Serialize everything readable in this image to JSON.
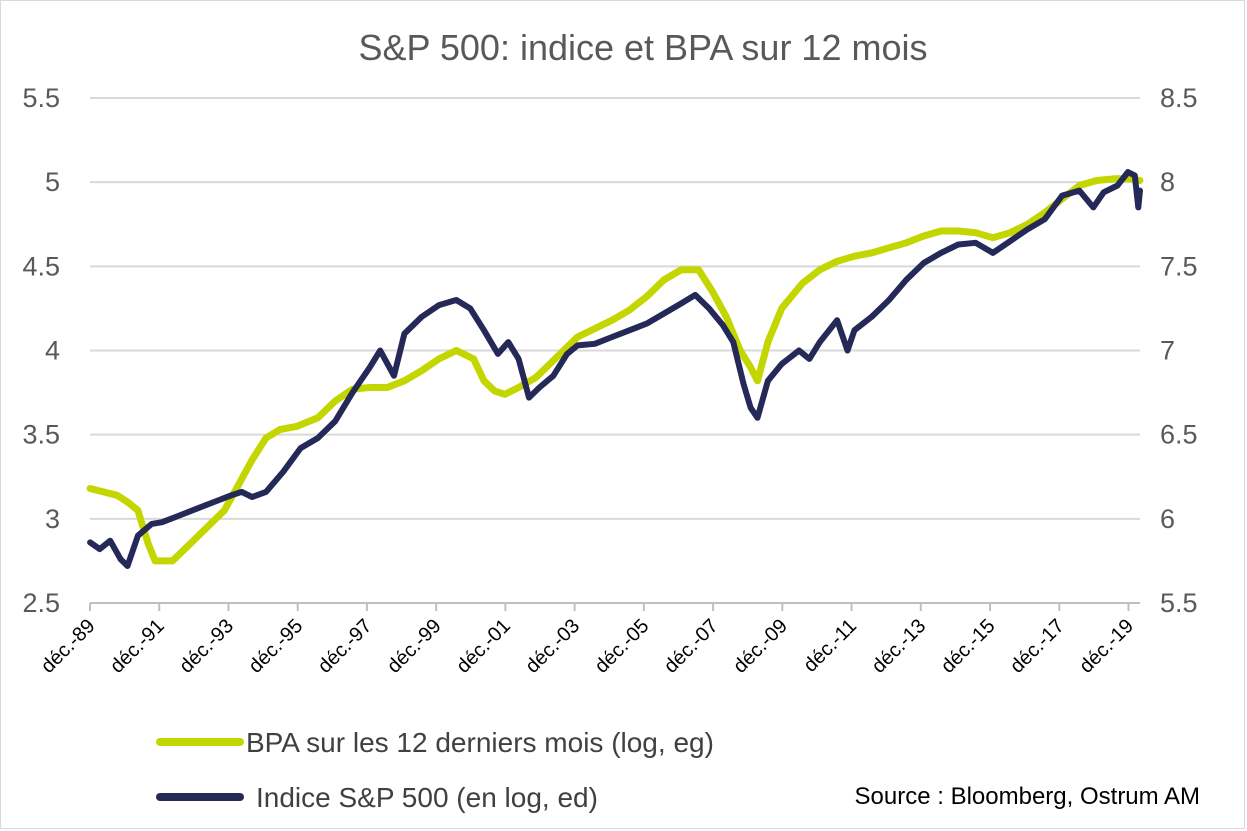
{
  "chart_data": {
    "type": "line",
    "title": "S&P 500: indice et BPA sur 12 mois",
    "source": "Source : Bloomberg, Ostrum AM",
    "x_range": [
      1989.917,
      2020.25
    ],
    "x_ticks": [
      "déc.-89",
      "déc.-91",
      "déc.-93",
      "déc.-95",
      "déc.-97",
      "déc.-99",
      "déc.-01",
      "déc.-03",
      "déc.-05",
      "déc.-07",
      "déc.-09",
      "déc.-11",
      "déc.-13",
      "déc.-15",
      "déc.-17",
      "déc.-19"
    ],
    "y_left": {
      "ticks": [
        "2.5",
        "3",
        "3.5",
        "4",
        "4.5",
        "5",
        "5.5"
      ],
      "range": [
        2.5,
        5.5
      ]
    },
    "y_right": {
      "ticks": [
        "5.5",
        "6",
        "6.5",
        "7",
        "7.5",
        "8",
        "8.5"
      ],
      "range": [
        5.5,
        8.5
      ]
    },
    "grid": true,
    "legend_position": "bottom-left",
    "series": [
      {
        "name": "BPA sur les 12 derniers mois (log, eg)",
        "axis": "left",
        "color": "#c3d600",
        "points": [
          [
            1989.92,
            3.18
          ],
          [
            1990.3,
            3.16
          ],
          [
            1990.7,
            3.14
          ],
          [
            1991.0,
            3.1
          ],
          [
            1991.3,
            3.05
          ],
          [
            1991.6,
            2.85
          ],
          [
            1991.8,
            2.75
          ],
          [
            1992.3,
            2.75
          ],
          [
            1992.8,
            2.85
          ],
          [
            1993.3,
            2.95
          ],
          [
            1993.8,
            3.05
          ],
          [
            1994.2,
            3.2
          ],
          [
            1994.6,
            3.35
          ],
          [
            1995.0,
            3.48
          ],
          [
            1995.4,
            3.53
          ],
          [
            1995.9,
            3.55
          ],
          [
            1996.5,
            3.6
          ],
          [
            1997.0,
            3.7
          ],
          [
            1997.5,
            3.77
          ],
          [
            1998.0,
            3.78
          ],
          [
            1998.5,
            3.78
          ],
          [
            1999.0,
            3.82
          ],
          [
            1999.5,
            3.88
          ],
          [
            2000.0,
            3.95
          ],
          [
            2000.5,
            4.0
          ],
          [
            2001.0,
            3.95
          ],
          [
            2001.3,
            3.82
          ],
          [
            2001.6,
            3.76
          ],
          [
            2001.9,
            3.74
          ],
          [
            2002.3,
            3.78
          ],
          [
            2002.8,
            3.84
          ],
          [
            2003.2,
            3.92
          ],
          [
            2003.6,
            4.0
          ],
          [
            2004.0,
            4.08
          ],
          [
            2004.5,
            4.13
          ],
          [
            2005.0,
            4.18
          ],
          [
            2005.5,
            4.24
          ],
          [
            2006.0,
            4.32
          ],
          [
            2006.5,
            4.42
          ],
          [
            2007.0,
            4.48
          ],
          [
            2007.5,
            4.48
          ],
          [
            2007.9,
            4.35
          ],
          [
            2008.3,
            4.2
          ],
          [
            2008.7,
            4.0
          ],
          [
            2009.0,
            3.9
          ],
          [
            2009.2,
            3.82
          ],
          [
            2009.5,
            4.05
          ],
          [
            2009.9,
            4.25
          ],
          [
            2010.5,
            4.4
          ],
          [
            2011.0,
            4.48
          ],
          [
            2011.5,
            4.53
          ],
          [
            2012.0,
            4.56
          ],
          [
            2012.5,
            4.58
          ],
          [
            2013.0,
            4.61
          ],
          [
            2013.5,
            4.64
          ],
          [
            2014.0,
            4.68
          ],
          [
            2014.5,
            4.71
          ],
          [
            2015.0,
            4.71
          ],
          [
            2015.5,
            4.7
          ],
          [
            2016.0,
            4.67
          ],
          [
            2016.5,
            4.7
          ],
          [
            2017.0,
            4.75
          ],
          [
            2017.5,
            4.82
          ],
          [
            2018.0,
            4.9
          ],
          [
            2018.5,
            4.98
          ],
          [
            2019.0,
            5.01
          ],
          [
            2019.5,
            5.02
          ],
          [
            2020.0,
            5.02
          ],
          [
            2020.25,
            5.01
          ]
        ]
      },
      {
        "name": "Indice S&P 500 (en log, ed)",
        "axis": "right",
        "color": "#252958",
        "points": [
          [
            1989.92,
            5.86
          ],
          [
            1990.2,
            5.82
          ],
          [
            1990.5,
            5.87
          ],
          [
            1990.8,
            5.76
          ],
          [
            1991.0,
            5.72
          ],
          [
            1991.3,
            5.9
          ],
          [
            1991.7,
            5.97
          ],
          [
            1992.0,
            5.98
          ],
          [
            1992.5,
            6.02
          ],
          [
            1993.0,
            6.06
          ],
          [
            1993.5,
            6.1
          ],
          [
            1994.0,
            6.14
          ],
          [
            1994.3,
            6.16
          ],
          [
            1994.6,
            6.13
          ],
          [
            1995.0,
            6.16
          ],
          [
            1995.5,
            6.28
          ],
          [
            1996.0,
            6.42
          ],
          [
            1996.5,
            6.48
          ],
          [
            1997.0,
            6.58
          ],
          [
            1997.5,
            6.75
          ],
          [
            1998.0,
            6.9
          ],
          [
            1998.3,
            7.0
          ],
          [
            1998.7,
            6.85
          ],
          [
            1999.0,
            7.1
          ],
          [
            1999.5,
            7.2
          ],
          [
            2000.0,
            7.27
          ],
          [
            2000.5,
            7.3
          ],
          [
            2000.9,
            7.25
          ],
          [
            2001.3,
            7.12
          ],
          [
            2001.7,
            6.98
          ],
          [
            2002.0,
            7.05
          ],
          [
            2002.3,
            6.95
          ],
          [
            2002.6,
            6.72
          ],
          [
            2002.9,
            6.78
          ],
          [
            2003.3,
            6.85
          ],
          [
            2003.7,
            6.98
          ],
          [
            2004.0,
            7.03
          ],
          [
            2004.5,
            7.04
          ],
          [
            2005.0,
            7.08
          ],
          [
            2005.5,
            7.12
          ],
          [
            2006.0,
            7.16
          ],
          [
            2006.5,
            7.22
          ],
          [
            2007.0,
            7.28
          ],
          [
            2007.4,
            7.33
          ],
          [
            2007.8,
            7.25
          ],
          [
            2008.2,
            7.15
          ],
          [
            2008.5,
            7.05
          ],
          [
            2008.8,
            6.8
          ],
          [
            2009.0,
            6.66
          ],
          [
            2009.2,
            6.6
          ],
          [
            2009.5,
            6.82
          ],
          [
            2009.9,
            6.92
          ],
          [
            2010.4,
            7.0
          ],
          [
            2010.7,
            6.95
          ],
          [
            2011.0,
            7.05
          ],
          [
            2011.5,
            7.18
          ],
          [
            2011.8,
            7.0
          ],
          [
            2012.0,
            7.12
          ],
          [
            2012.5,
            7.2
          ],
          [
            2013.0,
            7.3
          ],
          [
            2013.5,
            7.42
          ],
          [
            2014.0,
            7.52
          ],
          [
            2014.5,
            7.58
          ],
          [
            2015.0,
            7.63
          ],
          [
            2015.5,
            7.64
          ],
          [
            2016.0,
            7.58
          ],
          [
            2016.5,
            7.65
          ],
          [
            2017.0,
            7.72
          ],
          [
            2017.5,
            7.78
          ],
          [
            2018.0,
            7.92
          ],
          [
            2018.5,
            7.95
          ],
          [
            2018.9,
            7.85
          ],
          [
            2019.2,
            7.94
          ],
          [
            2019.6,
            7.98
          ],
          [
            2019.9,
            8.06
          ],
          [
            2020.1,
            8.04
          ],
          [
            2020.2,
            7.85
          ],
          [
            2020.25,
            7.95
          ]
        ]
      }
    ]
  }
}
